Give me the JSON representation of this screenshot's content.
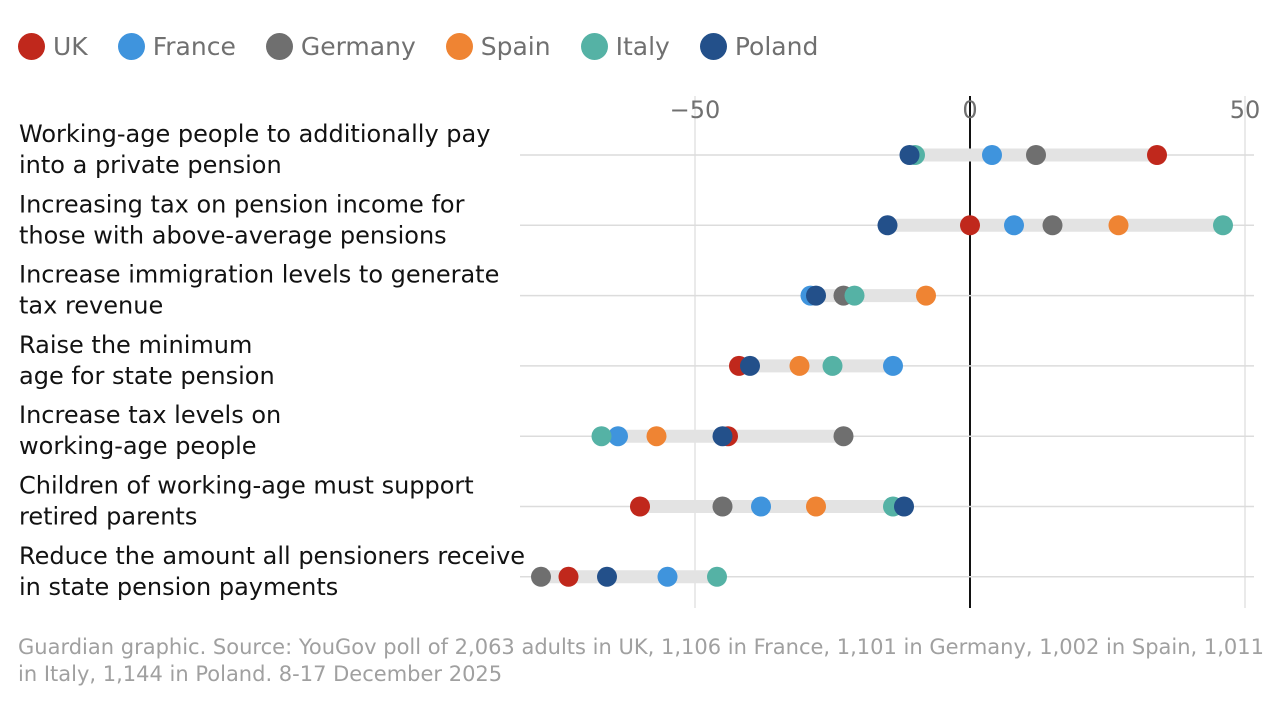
{
  "chart_data": {
    "type": "dot",
    "legend_placement": "top-left",
    "grid": true,
    "xlim": [
      -80,
      52
    ],
    "x_ticks": [
      -50,
      0,
      50
    ],
    "x_tick_labels": [
      "−50",
      "0",
      "50"
    ],
    "categories": [
      "Working-age people to additionally pay|into a private pension",
      "Increasing tax on pension income for|those with above-average pensions",
      "Increase immigration levels to generate|tax revenue",
      "Raise the minimum|age for state pension",
      "Increase tax levels on|working-age people",
      "Children of working-age must support|retired parents",
      "Reduce the amount all pensioners receive|in state pension payments"
    ],
    "series": [
      {
        "name": "UK",
        "color": "#c0281c",
        "values": [
          34,
          0,
          null,
          -42,
          -44,
          -60,
          -73
        ]
      },
      {
        "name": "France",
        "color": "#3f94dd",
        "values": [
          4,
          8,
          -29,
          -14,
          -64,
          -38,
          -55
        ]
      },
      {
        "name": "Germany",
        "color": "#6f6f6f",
        "values": [
          12,
          15,
          -23,
          null,
          -23,
          -45,
          -78
        ]
      },
      {
        "name": "Spain",
        "color": "#ef8433",
        "values": [
          null,
          27,
          -8,
          -31,
          -57,
          -28,
          null
        ]
      },
      {
        "name": "Italy",
        "color": "#55b2a5",
        "values": [
          -10,
          46,
          -21,
          -25,
          -67,
          -14,
          -46
        ]
      },
      {
        "name": "Poland",
        "color": "#23508a",
        "values": [
          -11,
          -15,
          -28,
          -40,
          -45,
          -12,
          -66
        ]
      }
    ]
  },
  "footer": {
    "source_line1": "Guardian graphic. Source: YouGov poll of 2,063 adults in UK, 1,106 in France, 1,101 in Germany, 1,002 in Spain, 1,011",
    "source_line2": "in Italy, 1,144 in Poland. 8-17 December 2025"
  }
}
